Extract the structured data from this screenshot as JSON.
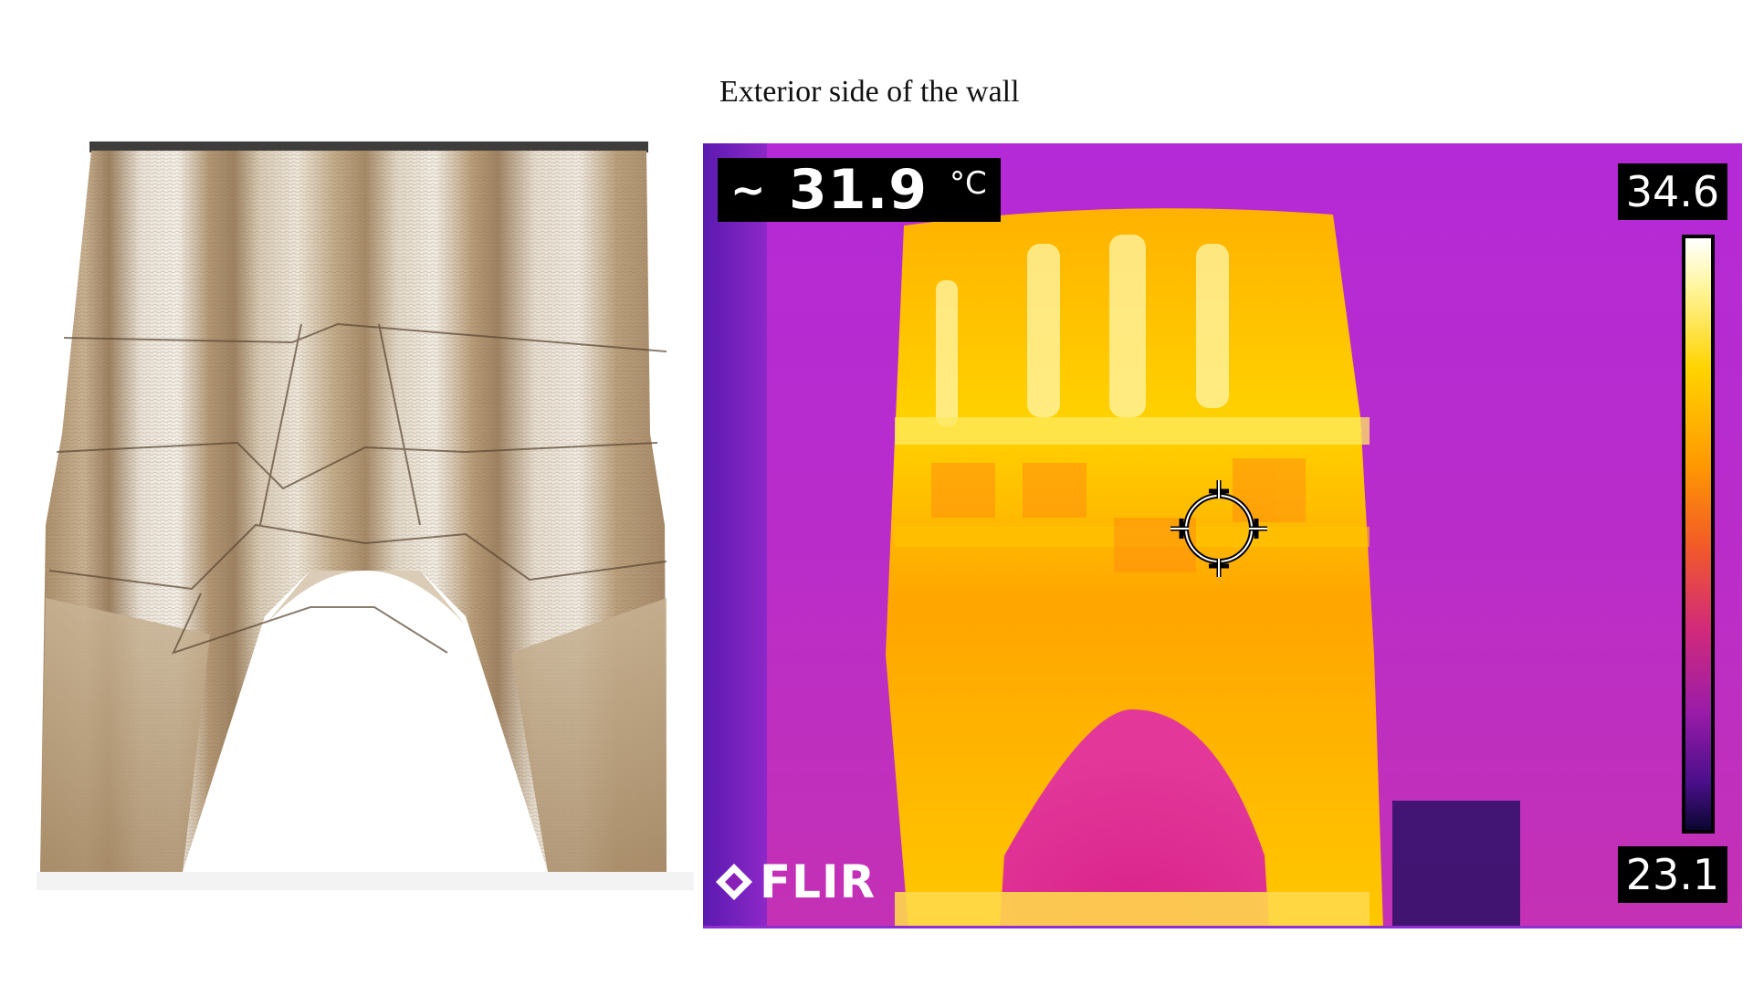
{
  "caption": "Exterior side of the wall",
  "thermal": {
    "spot_symbol": "~",
    "spot_temperature": "31.9",
    "spot_unit": "°C",
    "scale_max": "34.6",
    "scale_min": "23.1",
    "brand": "FLIR",
    "palette": [
      "#0a0630",
      "#4a0f8a",
      "#9a1ca8",
      "#d22a7a",
      "#f25a28",
      "#ff9a00",
      "#ffd400",
      "#ffffff"
    ]
  },
  "icons": {
    "crosshair": "spot-meter-crosshair-icon",
    "flir_logo": "flir-diamond-logo-icon"
  },
  "colors": {
    "wall_clay": "#b49a76",
    "wall_highlight": "#ece6dc",
    "thermal_background": "#b42ad6"
  }
}
